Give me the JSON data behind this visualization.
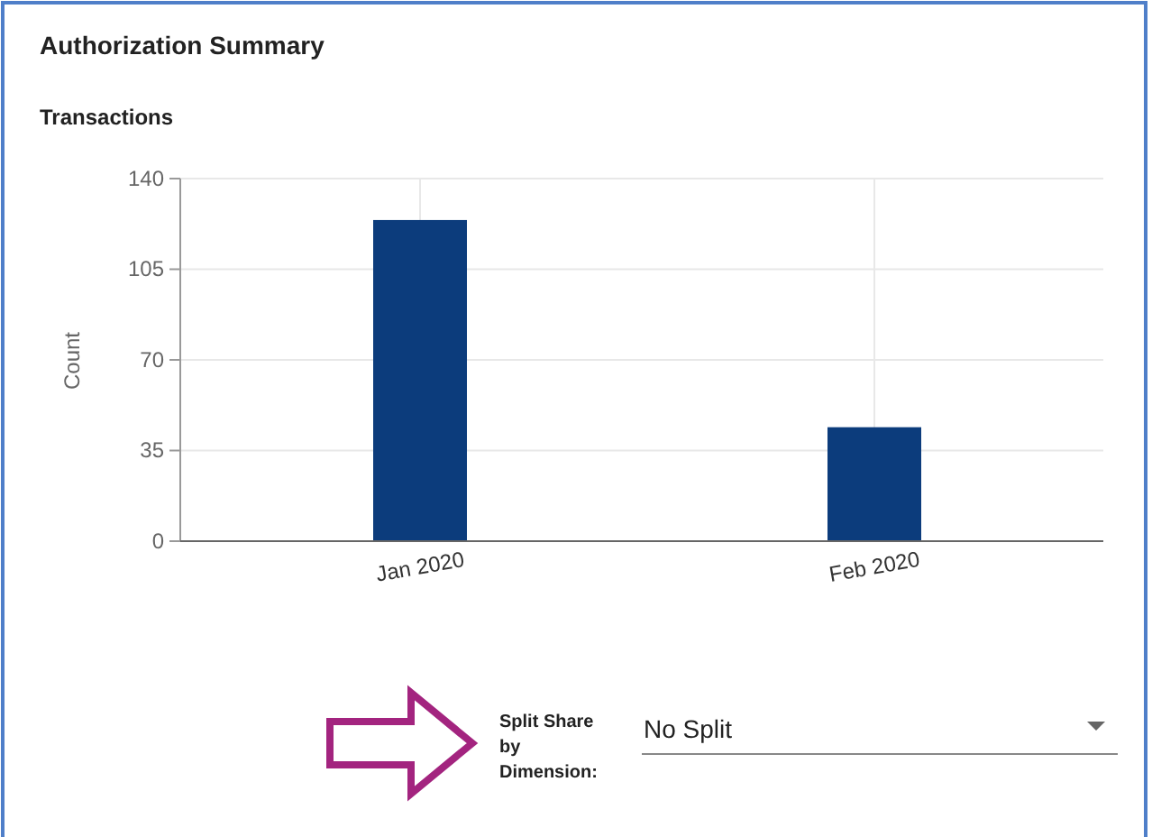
{
  "chart_data": {
    "type": "bar",
    "title": "Authorization Summary",
    "subtitle": "Transactions",
    "ylabel": "Count",
    "categories": [
      "Jan 2020",
      "Feb 2020"
    ],
    "values": [
      124,
      44
    ],
    "color": "#0c3c7c",
    "ylim": [
      0,
      140
    ],
    "yticks": [
      0,
      35,
      70,
      105,
      140
    ],
    "grid": true,
    "annotations": [
      "Split Share by Dimension:",
      "No Split"
    ]
  }
}
